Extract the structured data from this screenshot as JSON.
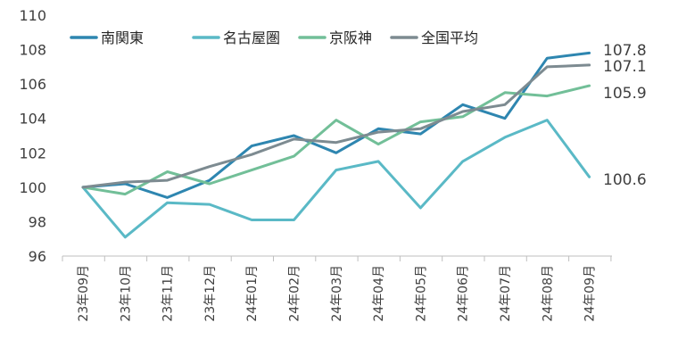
{
  "chart_data": {
    "type": "line",
    "title": "",
    "xlabel": "",
    "ylabel": "",
    "ylim": [
      96,
      110
    ],
    "yticks": [
      96,
      98,
      100,
      102,
      104,
      106,
      108,
      110
    ],
    "grid": false,
    "legend_position": "top-left",
    "categories": [
      "23年09月",
      "23年10月",
      "23年11月",
      "23年12月",
      "24年01月",
      "24年02月",
      "24年03月",
      "24年04月",
      "24年05月",
      "24年06月",
      "24年07月",
      "24年08月",
      "24年09月"
    ],
    "series": [
      {
        "name": "南関東",
        "color": "#2e86b0",
        "values": [
          100.0,
          100.2,
          99.4,
          100.4,
          102.4,
          103.0,
          102.0,
          103.4,
          103.1,
          104.8,
          104.0,
          107.5,
          107.8
        ]
      },
      {
        "name": "名古屋圏",
        "color": "#5ab9c6",
        "values": [
          100.0,
          97.1,
          99.1,
          99.0,
          98.1,
          98.1,
          101.0,
          101.5,
          98.8,
          101.5,
          102.9,
          103.9,
          100.6
        ]
      },
      {
        "name": "京阪神",
        "color": "#72bf98",
        "values": [
          100.0,
          99.6,
          100.9,
          100.2,
          101.0,
          101.8,
          103.9,
          102.5,
          103.8,
          104.1,
          105.5,
          105.3,
          105.9
        ]
      },
      {
        "name": "全国平均",
        "color": "#7d8b91",
        "values": [
          100.0,
          100.3,
          100.4,
          101.2,
          101.9,
          102.8,
          102.6,
          103.2,
          103.4,
          104.4,
          104.8,
          107.0,
          107.1
        ]
      }
    ],
    "end_labels": [
      {
        "series": "南関東",
        "text": "107.8"
      },
      {
        "series": "全国平均",
        "text": "107.1"
      },
      {
        "series": "京阪神",
        "text": "105.9"
      },
      {
        "series": "名古屋圏",
        "text": "100.6"
      }
    ]
  }
}
